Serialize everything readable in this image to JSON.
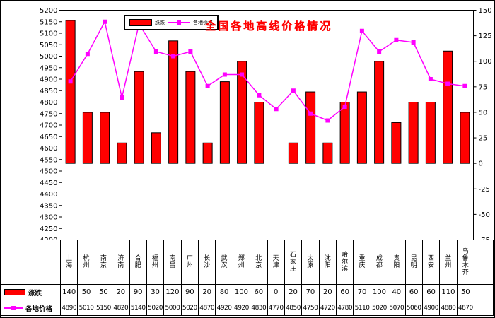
{
  "chart_data": {
    "type": "bar+line",
    "title": "全国各地高线价格情况",
    "categories": [
      "上海",
      "杭州",
      "南京",
      "济南",
      "合肥",
      "福州",
      "南昌",
      "广州",
      "长沙",
      "武汉",
      "郑州",
      "北京",
      "天津",
      "石家庄",
      "太原",
      "沈阳",
      "哈尔滨",
      "重庆",
      "成都",
      "贵阳",
      "昆明",
      "西安",
      "兰州",
      "乌鲁木齐"
    ],
    "series": [
      {
        "name": "涨跌",
        "type": "bar",
        "axis": "right",
        "color": "#ff0000",
        "values": [
          140,
          50,
          50,
          20,
          90,
          30,
          120,
          90,
          20,
          80,
          100,
          60,
          0,
          20,
          70,
          20,
          60,
          70,
          100,
          40,
          60,
          60,
          110,
          50
        ]
      },
      {
        "name": "各地价格",
        "type": "line",
        "axis": "left",
        "color": "#ff00ff",
        "values": [
          4890,
          5010,
          5150,
          4820,
          5140,
          5020,
          5000,
          5020,
          4870,
          4920,
          4920,
          4830,
          4770,
          4850,
          4750,
          4720,
          4780,
          5110,
          5020,
          5070,
          5060,
          4900,
          4880,
          4870
        ]
      }
    ],
    "left_axis": {
      "min": 4200,
      "max": 5200,
      "step": 50
    },
    "right_axis": {
      "min": -75,
      "max": 150,
      "step": 25
    },
    "legend_position": "top-center",
    "grid": false,
    "colors": {
      "bar_fill": "#ff0000",
      "bar_border": "#000000",
      "line": "#ff00ff",
      "title": "#ff0000",
      "axis_text": "#000000"
    }
  }
}
